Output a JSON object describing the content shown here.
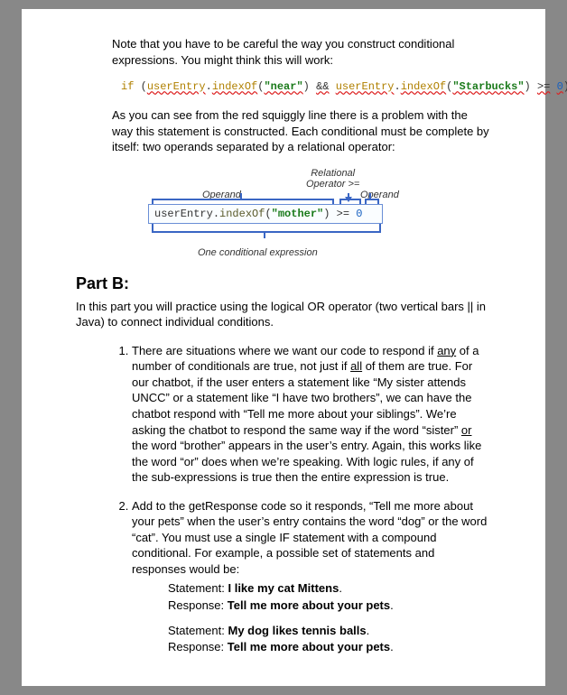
{
  "intro": {
    "p1": "Note that you have to be careful the way you construct conditional expressions.  You might think this will work:",
    "codeLine": {
      "if": "if",
      "open": "(",
      "var": "userEntry",
      "dot": ".",
      "method": "indexOf",
      "open2": "(",
      "str1": "\"near\"",
      "close2": ")",
      "amp": "&&",
      "var2": "userEntry",
      "method2": "indexOf",
      "str2": "\"Starbucks\"",
      "ge": ">=",
      "zero": "0",
      "close": ")"
    },
    "p2": "As you can see from the red squiggly line there is a problem with the way this statement is constructed.  Each conditional must be complete by itself: two operands separated by a relational operator:"
  },
  "diagram": {
    "operand": "Operand",
    "relop": "Relational\nOperator >=",
    "operand2": "Operand",
    "bottom": "One conditional expression",
    "code": {
      "var": "userEntry",
      "dot": ".",
      "method": "indexOf",
      "open": "(",
      "str": "\"mother\"",
      "close": ")",
      "ge": ">=",
      "zero": "0"
    }
  },
  "partB": {
    "title": "Part B:",
    "intro": "In this part you will practice using the logical OR operator (two vertical bars  ||  in Java) to connect individual conditions.",
    "item1": {
      "pre": "There are situations where we want our code to respond if ",
      "any": "any",
      "mid1": " of a number of conditionals are true, not just if ",
      "all": "all",
      "mid2": " of them are true.  For our chatbot, if the user enters a statement like “My sister attends UNCC” or a statement like “I have two brothers”, we can have the chatbot respond with “Tell me more about your siblings”.   We’re asking the chatbot to respond the same way if the word “sister” ",
      "or": "or",
      "post": " the word “brother” appears in the user’s entry.  Again, this works like the word “or” does when we’re speaking.  With logic rules, if any of the sub-expressions is true then the entire expression is true."
    },
    "item2": {
      "text": "Add to the getResponse code so it responds, “Tell me more about your pets” when the user’s entry contains the word “dog” or the word “cat”.  You must use a single IF statement with a compound conditional.   For example, a possible set of statements and responses would be:",
      "s1_label": "Statement: ",
      "s1": "I like my cat Mittens",
      "s1_dot": ".",
      "r_label": "Response: ",
      "r1": "Tell me more about your pets",
      "r_dot": ".",
      "s2": "My dog likes tennis balls",
      "r2": "Tell me more about your pets"
    }
  }
}
